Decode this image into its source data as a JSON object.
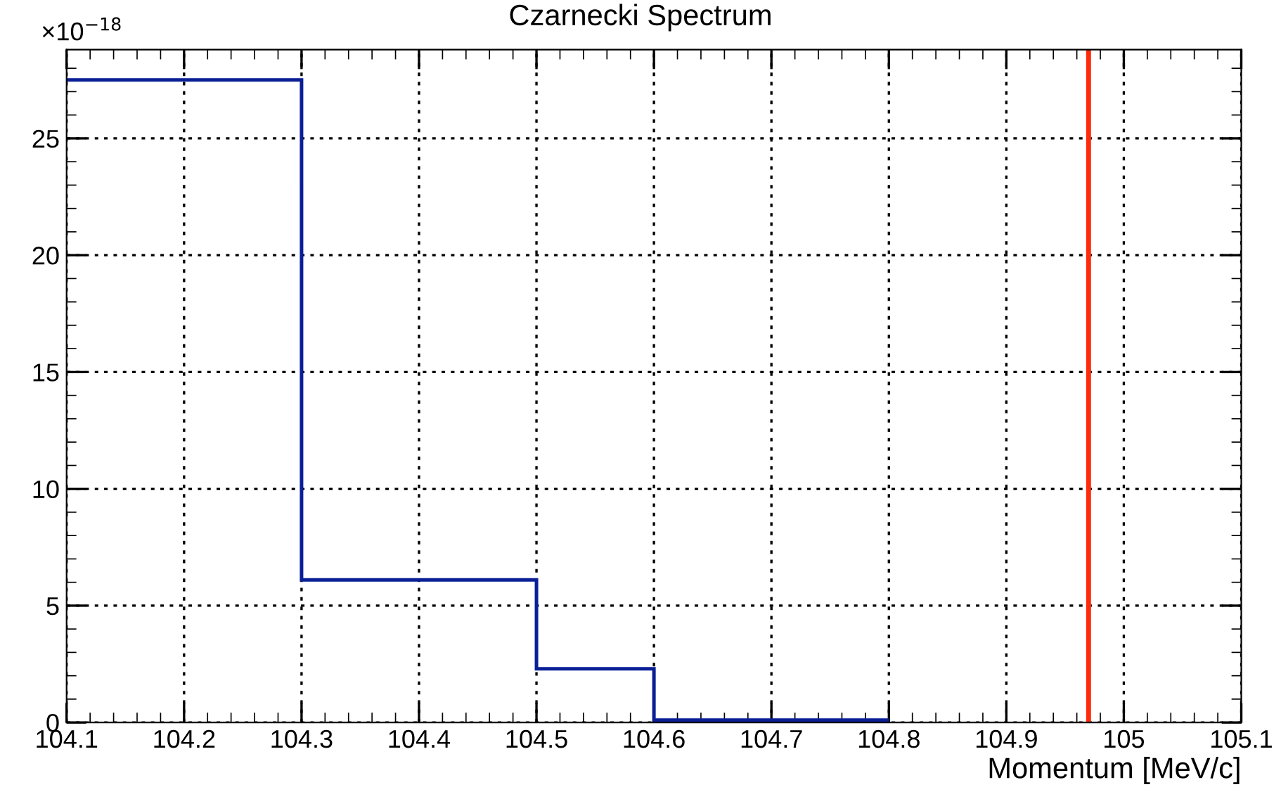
{
  "chart_data": {
    "type": "histogram",
    "title": "Czarnecki Spectrum",
    "xlabel": "Momentum [MeV/c]",
    "bins": [
      104.1,
      104.3,
      104.5,
      104.6,
      104.8
    ],
    "values": [
      27.5,
      6.1,
      2.3,
      0.1
    ],
    "color": "#0a1f96",
    "xlim": [
      104.1,
      105.1
    ],
    "xticks": [
      104.1,
      104.2,
      104.3,
      104.4,
      104.5,
      104.6,
      104.7,
      104.8,
      104.9,
      105,
      105.1
    ],
    "ylim": [
      0,
      28.8
    ],
    "yticks": [
      0,
      5,
      10,
      15,
      20,
      25
    ],
    "annotations": [
      "×10$^{−18}$"
    ],
    "ref_lines": [
      {
        "axis": "x",
        "value": 104.97,
        "color": "#ff2a0a"
      }
    ],
    "grid": true,
    "legend": false
  }
}
